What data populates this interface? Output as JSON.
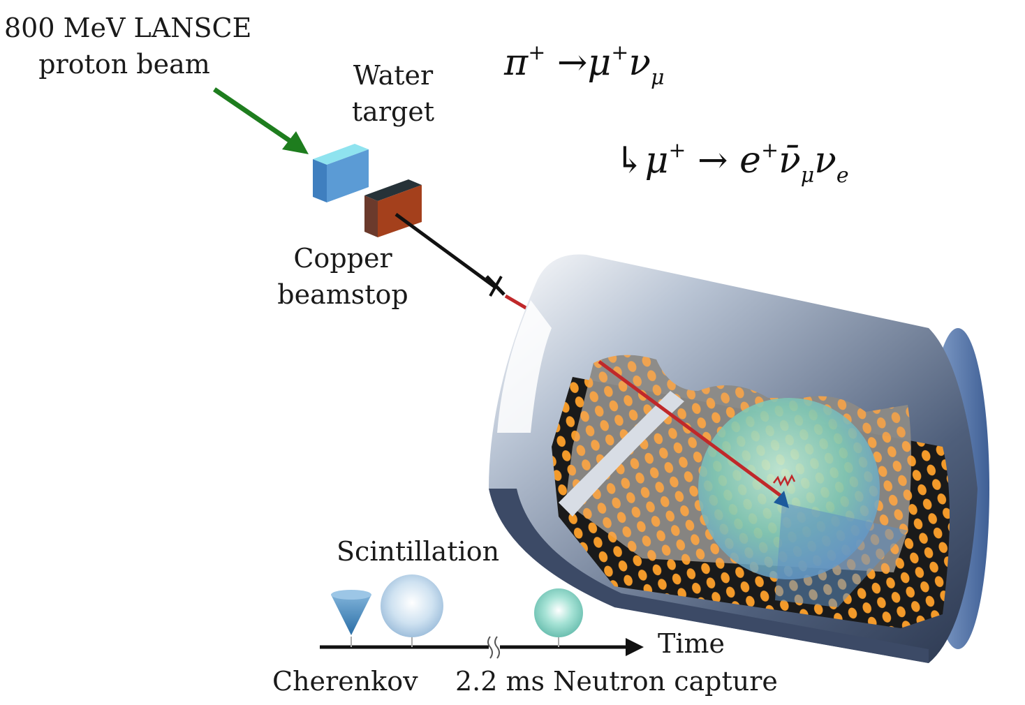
{
  "labels": {
    "beam_line1": "800 MeV LANSCE",
    "beam_line2": "proton beam",
    "water_line1": "Water",
    "water_line2": "target",
    "copper_line1": "Copper",
    "copper_line2": "beamstop",
    "scintillation": "Scintillation",
    "time": "Time",
    "cherenkov": "Cherenkov",
    "neutron_capture": "2.2 ms Neutron capture"
  },
  "equations": {
    "pion": {
      "pi": "π",
      "plus1": "+",
      "arrow": "→",
      "mu": "μ",
      "plus2": "+",
      "nu": "ν",
      "sub_mu": "μ"
    },
    "muon": {
      "hook": "↳",
      "mu": "μ",
      "plus1": "+",
      "arrow": "→",
      "e": "e",
      "plus2": "+",
      "nubar": "ν̄",
      "sub_mu": "μ",
      "nu": "ν",
      "sub_e": "e"
    }
  },
  "colors": {
    "beam_arrow": "#1e7d1e",
    "water_target": "#5b9bd5",
    "copper_beamstop": "#a4401c",
    "neutrino_track": "#c0282a",
    "detector_shell": "#4d5f7c",
    "pmt": "#f39a2a"
  }
}
